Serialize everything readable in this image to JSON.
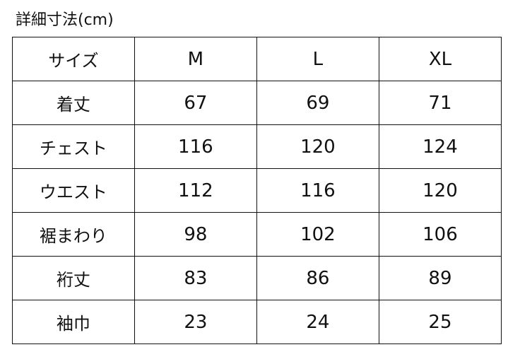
{
  "title": "詳細寸法(cm)",
  "table": {
    "header": [
      "サイズ",
      "M",
      "L",
      "XL"
    ],
    "rows": [
      {
        "label": "着丈",
        "values": [
          "67",
          "69",
          "71"
        ]
      },
      {
        "label": "チェスト",
        "values": [
          "116",
          "120",
          "124"
        ]
      },
      {
        "label": "ウエスト",
        "values": [
          "112",
          "116",
          "120"
        ]
      },
      {
        "label": "裾まわり",
        "values": [
          "98",
          "102",
          "106"
        ]
      },
      {
        "label": "裄丈",
        "values": [
          "83",
          "86",
          "89"
        ]
      },
      {
        "label": "袖巾",
        "values": [
          "23",
          "24",
          "25"
        ]
      }
    ]
  }
}
